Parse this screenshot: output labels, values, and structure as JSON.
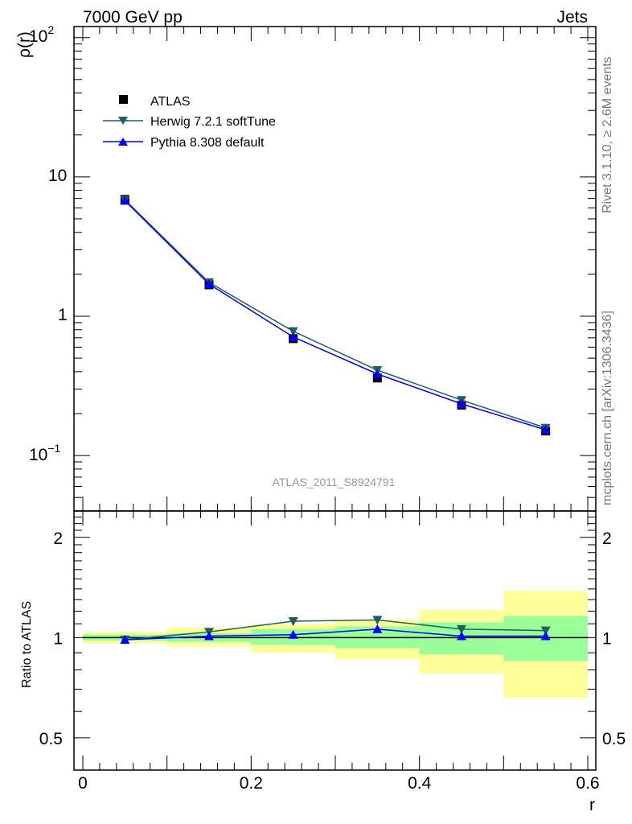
{
  "header": {
    "left": "7000 GeV pp",
    "right": "Jets"
  },
  "side_labels": {
    "top": "Rivet 3.1.10, ≥ 2.6M events",
    "bottom": "mcplots.cern.ch [arXiv:1306.3436]"
  },
  "watermark": "ATLAS_2011_S8924791",
  "colors": {
    "atlas": "#000000",
    "herwig": "#1f5f5f",
    "pythia": "#0000ff",
    "band_outer": "#ffff99",
    "band_inner": "#99ff99"
  },
  "chart_data": [
    {
      "type": "line",
      "panel": "main",
      "ylabel": "ρ(r)",
      "yscale": "log",
      "xlim": [
        0,
        0.6
      ],
      "ylim": [
        0.04,
        120
      ],
      "ytick_labels": {
        "decade_2": "10",
        "decade_2_exp": "2",
        "decade_1": "10",
        "decade_0": "1",
        "decade_m1": "10",
        "decade_m1_exp": "−1"
      },
      "legend": {
        "position": "top-left",
        "entries": [
          "ATLAS",
          "Herwig 7.2.1 softTune",
          "Pythia 8.308 default"
        ]
      },
      "x": [
        0.05,
        0.15,
        0.25,
        0.35,
        0.45,
        0.55
      ],
      "series": [
        {
          "name": "ATLAS",
          "marker": "square",
          "values": [
            6.9,
            1.68,
            0.69,
            0.36,
            0.23,
            0.15
          ]
        },
        {
          "name": "Herwig 7.2.1 softTune",
          "marker": "triangle-down",
          "values": [
            6.85,
            1.75,
            0.78,
            0.41,
            0.25,
            0.158
          ]
        },
        {
          "name": "Pythia 8.308 default",
          "marker": "triangle-up",
          "values": [
            6.75,
            1.7,
            0.71,
            0.385,
            0.235,
            0.153
          ]
        }
      ]
    },
    {
      "type": "line",
      "panel": "ratio",
      "xlabel": "r",
      "ylabel": "Ratio to ATLAS",
      "yscale": "log",
      "xlim": [
        0,
        0.6
      ],
      "ylim": [
        0.4,
        2.4
      ],
      "x_ticks": [
        0,
        0.2,
        0.4,
        0.6
      ],
      "x_tick_labels": [
        "0",
        "0.2",
        "0.4",
        "0.6"
      ],
      "y_ticks": [
        0.5,
        1,
        2
      ],
      "y_tick_labels": [
        "0.5",
        "1",
        "2"
      ],
      "bins": [
        [
          0.0,
          0.1
        ],
        [
          0.1,
          0.2
        ],
        [
          0.2,
          0.3
        ],
        [
          0.3,
          0.4
        ],
        [
          0.4,
          0.5
        ],
        [
          0.5,
          0.6
        ]
      ],
      "band_outer": [
        [
          0.96,
          1.04
        ],
        [
          0.94,
          1.07
        ],
        [
          0.9,
          1.1
        ],
        [
          0.86,
          1.13
        ],
        [
          0.78,
          1.21
        ],
        [
          0.66,
          1.38
        ]
      ],
      "band_inner": [
        [
          0.98,
          1.02
        ],
        [
          0.97,
          1.03
        ],
        [
          0.95,
          1.06
        ],
        [
          0.93,
          1.08
        ],
        [
          0.89,
          1.11
        ],
        [
          0.85,
          1.16
        ]
      ],
      "x": [
        0.05,
        0.15,
        0.25,
        0.35,
        0.45,
        0.55
      ],
      "series": [
        {
          "name": "Herwig 7.2.1 softTune",
          "values": [
            0.985,
            1.04,
            1.12,
            1.13,
            1.06,
            1.05
          ]
        },
        {
          "name": "Pythia 8.308 default",
          "values": [
            0.985,
            1.01,
            1.02,
            1.06,
            1.01,
            1.01
          ]
        }
      ]
    }
  ]
}
